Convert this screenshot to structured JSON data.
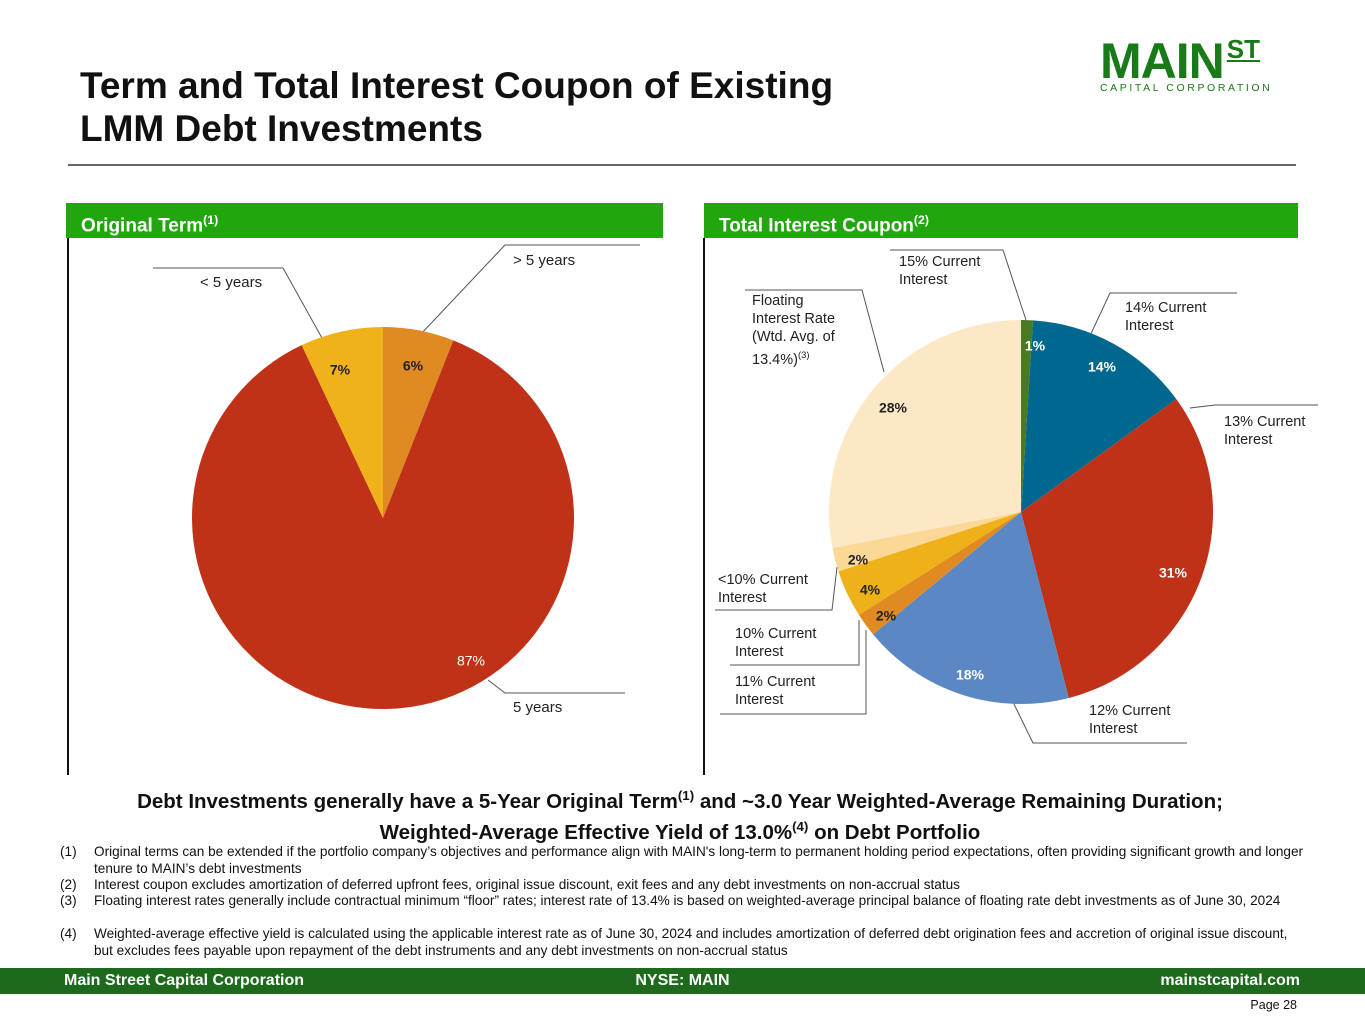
{
  "header": {
    "title": [
      "Term and Total Interest Coupon of Existing",
      "LMM Debt Investments"
    ],
    "logo_main": "MAIN",
    "logo_st": "ST",
    "logo_sub": "CAPITAL CORPORATION"
  },
  "chart_data": [
    {
      "type": "pie",
      "title": "Original Term",
      "title_note": "(1)",
      "categories": [
        "> 5 years",
        "5 years",
        "< 5 years"
      ],
      "values": [
        6,
        87,
        7
      ],
      "value_labels": [
        "6%",
        "87%",
        "7%"
      ],
      "colors": [
        "#e08a22",
        "#c03217",
        "#f0b21a"
      ]
    },
    {
      "type": "pie",
      "title": "Total Interest Coupon",
      "title_note": "(2)",
      "categories": [
        "15% Current Interest",
        "14% Current Interest",
        "13% Current Interest",
        "12% Current Interest",
        "11% Current Interest",
        "10% Current Interest",
        "<10% Current Interest",
        "Floating Interest Rate (Wtd. Avg. of 13.4%)"
      ],
      "floating_rate_note": "(3)",
      "values": [
        1,
        14,
        31,
        18,
        2,
        4,
        2,
        28
      ],
      "value_labels": [
        "1%",
        "14%",
        "31%",
        "18%",
        "2%",
        "4%",
        "2%",
        "28%"
      ],
      "colors": [
        "#4a7a23",
        "#00688f",
        "#c03217",
        "#5b87c5",
        "#e08a22",
        "#efb11a",
        "#fcd896",
        "#fde8c5"
      ]
    }
  ],
  "summary": [
    "Debt Investments generally have a 5-Year Original Term",
    "(1)",
    " and ~3.0 Year Weighted-Average Remaining Duration; Weighted-Average Effective Yield of 13.0%",
    "(4)",
    " on Debt Portfolio"
  ],
  "footnotes": [
    {
      "num": "(1)",
      "text": "Original terms can be extended if the portfolio company’s objectives and performance align with MAIN's long-term to permanent holding period expectations, often providing significant growth and longer tenure to MAIN’s debt investments"
    },
    {
      "num": "(2)",
      "text": "Interest coupon excludes amortization of deferred upfront fees, original issue discount, exit fees and any debt investments on non-accrual status"
    },
    {
      "num": "(3)",
      "text": "Floating interest rates generally include contractual minimum “floor” rates; interest rate of 13.4% is based on weighted-average principal balance of floating rate debt investments as of June 30, 2024"
    },
    {
      "num": "(4)",
      "text": "Weighted-average effective yield is calculated using the applicable interest rate as of June 30, 2024 and includes amortization of deferred debt origination fees and accretion of original issue discount, but excludes fees payable upon repayment of the debt instruments and any debt investments on non-accrual status"
    }
  ],
  "footer": {
    "left": "Main Street Capital Corporation",
    "center": "NYSE: MAIN",
    "right": "mainstcapital.com"
  },
  "page": "Page  28"
}
